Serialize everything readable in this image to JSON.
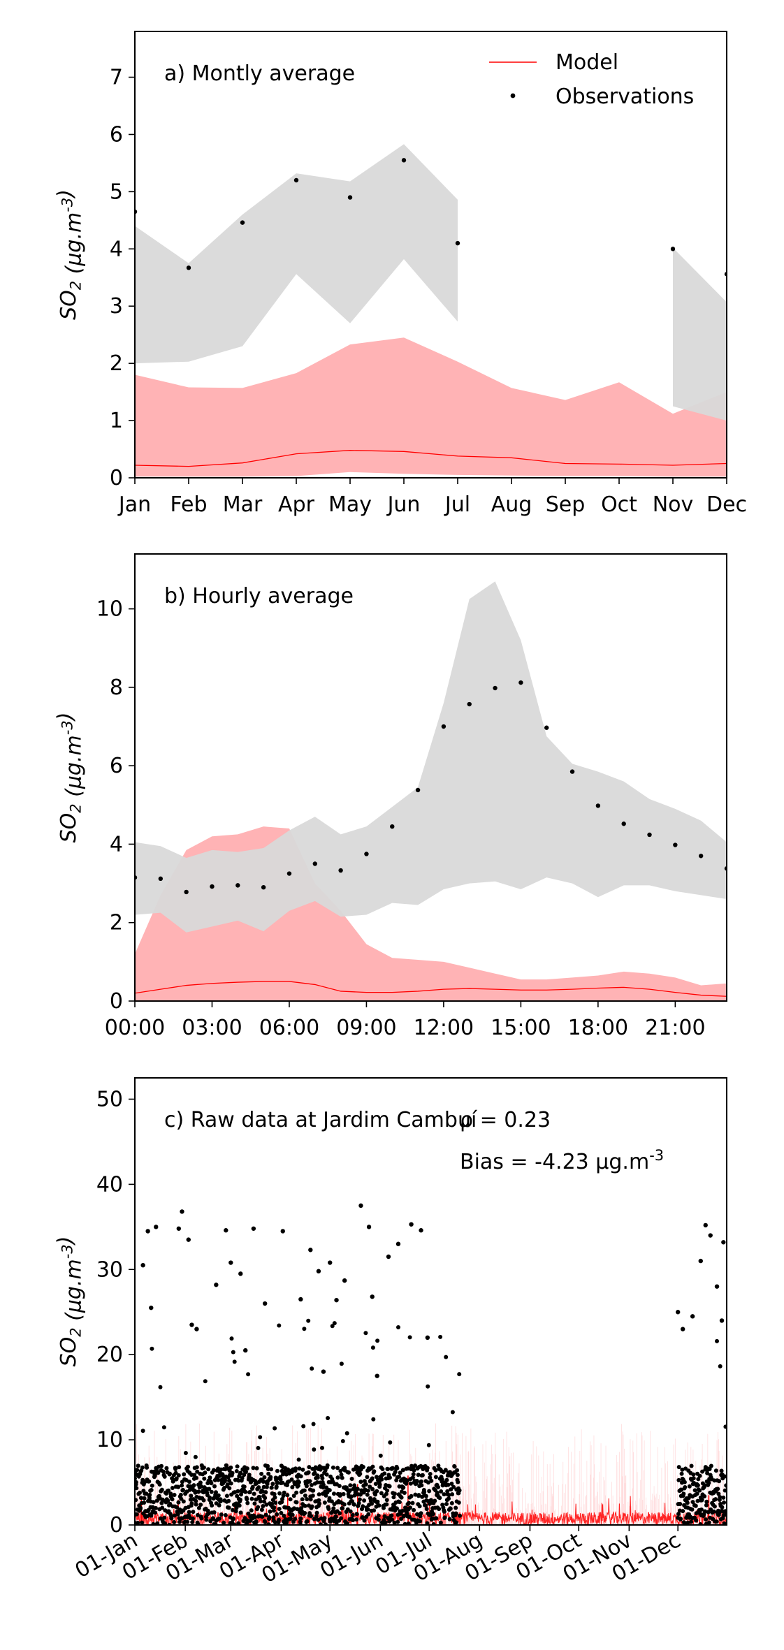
{
  "colors": {
    "model_line": "#ff0000",
    "model_band": "#ffb3b5",
    "obs_band": "#d9d9d9",
    "observations": "#000000"
  },
  "chart_data": [
    {
      "id": "a",
      "type": "line",
      "title": "a) Montly average",
      "ylabel": "SO$_2$ (μg.m$^{-3}$)",
      "ylim": [
        0,
        7.8
      ],
      "yticks": [
        0,
        1,
        2,
        3,
        4,
        5,
        6,
        7
      ],
      "xlim": [
        0,
        11
      ],
      "x_ticks": [
        "Jan",
        "Feb",
        "Mar",
        "Apr",
        "May",
        "Jun",
        "Jul",
        "Aug",
        "Sep",
        "Oct",
        "Nov",
        "Dec"
      ],
      "legend": {
        "position": "top-right",
        "items": [
          "Model",
          "Observations"
        ]
      },
      "series": [
        {
          "name": "Model",
          "kind": "line",
          "x": [
            0,
            1,
            2,
            3,
            4,
            5,
            6,
            7,
            8,
            9,
            10,
            11
          ],
          "values": [
            0.22,
            0.2,
            0.26,
            0.42,
            0.48,
            0.46,
            0.38,
            0.35,
            0.25,
            0.24,
            0.22,
            0.25
          ],
          "band_low": [
            0.02,
            0.02,
            0.02,
            0.03,
            0.1,
            0.07,
            0.05,
            0.04,
            0.03,
            0.03,
            0.02,
            0.02
          ],
          "band_high": [
            1.8,
            1.58,
            1.57,
            1.83,
            2.33,
            2.45,
            2.03,
            1.57,
            1.36,
            1.67,
            1.12,
            1.5
          ]
        },
        {
          "name": "Observations",
          "kind": "scatter",
          "x": [
            0,
            1,
            2,
            3,
            4,
            5,
            6,
            10,
            11
          ],
          "values": [
            4.65,
            3.67,
            4.46,
            5.2,
            4.9,
            5.55,
            4.1,
            4.0,
            3.56
          ],
          "band_segments": [
            {
              "x": [
                0,
                1,
                2,
                3,
                4,
                5,
                6
              ],
              "low": [
                2.0,
                2.03,
                2.3,
                3.56,
                2.7,
                3.82,
                2.73
              ],
              "high": [
                4.4,
                3.75,
                4.6,
                5.32,
                5.18,
                5.83,
                4.86
              ]
            },
            {
              "x": [
                10,
                11
              ],
              "low": [
                1.25,
                1.0
              ],
              "high": [
                4.02,
                3.07
              ]
            }
          ]
        }
      ]
    },
    {
      "id": "b",
      "type": "line",
      "title": "b) Hourly average",
      "ylabel": "SO$_2$ (μg.m$^{-3}$)",
      "ylim": [
        0,
        11.4
      ],
      "yticks": [
        0,
        2,
        4,
        6,
        8,
        10
      ],
      "xlim": [
        0,
        23
      ],
      "x_tick_positions": [
        0,
        3,
        6,
        9,
        12,
        15,
        18,
        21
      ],
      "x_ticks": [
        "00:00",
        "03:00",
        "06:00",
        "09:00",
        "12:00",
        "15:00",
        "18:00",
        "21:00"
      ],
      "series": [
        {
          "name": "Model",
          "kind": "line",
          "x": [
            0,
            1,
            2,
            3,
            4,
            5,
            6,
            7,
            8,
            9,
            10,
            11,
            12,
            13,
            14,
            15,
            16,
            17,
            18,
            19,
            20,
            21,
            22,
            23
          ],
          "values": [
            0.2,
            0.3,
            0.4,
            0.45,
            0.48,
            0.5,
            0.5,
            0.42,
            0.25,
            0.22,
            0.22,
            0.25,
            0.3,
            0.32,
            0.3,
            0.28,
            0.28,
            0.3,
            0.33,
            0.35,
            0.3,
            0.22,
            0.15,
            0.12
          ],
          "band_low": [
            0,
            0,
            0,
            0,
            0,
            0,
            0,
            0,
            0,
            0,
            0,
            0,
            0,
            0,
            0,
            0,
            0,
            0,
            0,
            0,
            0,
            0,
            0,
            0
          ],
          "band_high": [
            1.2,
            2.7,
            3.85,
            4.2,
            4.25,
            4.45,
            4.4,
            3.0,
            2.3,
            1.45,
            1.1,
            1.05,
            1.0,
            0.85,
            0.7,
            0.55,
            0.55,
            0.6,
            0.65,
            0.75,
            0.7,
            0.6,
            0.4,
            0.45
          ]
        },
        {
          "name": "Observations",
          "kind": "scatter",
          "x": [
            0,
            1,
            2,
            3,
            4,
            5,
            6,
            7,
            8,
            9,
            10,
            11,
            12,
            13,
            14,
            15,
            16,
            17,
            18,
            19,
            20,
            21,
            22,
            23
          ],
          "values": [
            3.15,
            3.12,
            2.78,
            2.92,
            2.95,
            2.9,
            3.25,
            3.5,
            3.33,
            3.75,
            4.45,
            5.38,
            7.0,
            7.57,
            7.98,
            8.12,
            6.97,
            5.85,
            4.98,
            4.52,
            4.24,
            3.98,
            3.7,
            3.38
          ],
          "band_low": [
            2.2,
            2.25,
            1.75,
            1.9,
            2.05,
            1.78,
            2.3,
            2.55,
            2.15,
            2.2,
            2.5,
            2.45,
            2.85,
            3.0,
            3.05,
            2.85,
            3.15,
            3.0,
            2.65,
            2.95,
            2.95,
            2.8,
            2.7,
            2.6
          ],
          "band_high": [
            4.05,
            3.95,
            3.65,
            3.85,
            3.8,
            3.9,
            4.35,
            4.7,
            4.25,
            4.45,
            4.95,
            5.45,
            7.6,
            10.25,
            10.7,
            9.2,
            6.75,
            6.05,
            5.85,
            5.6,
            5.15,
            4.9,
            4.6,
            4.05
          ]
        }
      ]
    },
    {
      "id": "c",
      "type": "scatter",
      "title": "c) Raw data at Jardim Cambuí",
      "annotations": [
        "ρ = 0.23",
        "Bias = -4.23 μg.m$^{-3}$"
      ],
      "ylabel": "SO$_2$ (μg.m$^{-3}$)",
      "ylim": [
        0,
        52.5
      ],
      "yticks": [
        0,
        10,
        20,
        30,
        40,
        50
      ],
      "xlim": [
        "2019-01-01",
        "2019-12-31"
      ],
      "x_tick_dates": [
        "2019-01-01",
        "2019-02-01",
        "2019-03-01",
        "2019-04-01",
        "2019-05-01",
        "2019-06-01",
        "2019-07-01",
        "2019-08-01",
        "2019-09-01",
        "2019-10-01",
        "2019-11-01",
        "2019-12-01"
      ],
      "x_ticks": [
        "01-Jan",
        "01-Feb",
        "01-Mar",
        "01-Apr",
        "01-May",
        "01-Jun",
        "01-Jul",
        "01-Aug",
        "01-Sep",
        "01-Oct",
        "01-Nov",
        "01-Dec"
      ],
      "observation_periods": [
        [
          "2019-01-01",
          "2019-07-20"
        ],
        [
          "2019-12-01",
          "2019-12-31"
        ]
      ],
      "series": [
        {
          "name": "Observations",
          "kind": "scatter",
          "typical_range": [
            0,
            7
          ],
          "peaks": [
            {
              "date": "2019-01-06",
              "value": 30.5
            },
            {
              "date": "2019-01-09",
              "value": 34.5
            },
            {
              "date": "2019-01-11",
              "value": 25.5
            },
            {
              "date": "2019-01-14",
              "value": 35.0
            },
            {
              "date": "2019-01-28",
              "value": 34.8
            },
            {
              "date": "2019-01-30",
              "value": 36.8
            },
            {
              "date": "2019-02-03",
              "value": 33.5
            },
            {
              "date": "2019-02-05",
              "value": 23.5
            },
            {
              "date": "2019-02-08",
              "value": 23.0
            },
            {
              "date": "2019-02-20",
              "value": 28.2
            },
            {
              "date": "2019-02-26",
              "value": 34.6
            },
            {
              "date": "2019-03-01",
              "value": 30.8
            },
            {
              "date": "2019-03-07",
              "value": 29.5
            },
            {
              "date": "2019-03-15",
              "value": 34.8
            },
            {
              "date": "2019-03-22",
              "value": 26.0
            },
            {
              "date": "2019-04-02",
              "value": 34.5
            },
            {
              "date": "2019-04-13",
              "value": 26.5
            },
            {
              "date": "2019-04-19",
              "value": 32.3
            },
            {
              "date": "2019-04-24",
              "value": 29.8
            },
            {
              "date": "2019-05-01",
              "value": 30.8
            },
            {
              "date": "2019-05-05",
              "value": 26.4
            },
            {
              "date": "2019-05-10",
              "value": 28.7
            },
            {
              "date": "2019-05-20",
              "value": 37.5
            },
            {
              "date": "2019-05-25",
              "value": 35.0
            },
            {
              "date": "2019-05-27",
              "value": 26.8
            },
            {
              "date": "2019-06-06",
              "value": 31.5
            },
            {
              "date": "2019-06-12",
              "value": 33.0
            },
            {
              "date": "2019-06-20",
              "value": 35.3
            },
            {
              "date": "2019-06-26",
              "value": 34.6
            },
            {
              "date": "2019-06-30",
              "value": 22.0
            },
            {
              "date": "2019-03-10",
              "value": 20.5
            },
            {
              "date": "2019-04-27",
              "value": 18.0
            },
            {
              "date": "2019-05-30",
              "value": 17.5
            },
            {
              "date": "2019-12-01",
              "value": 25.0
            },
            {
              "date": "2019-12-04",
              "value": 23.0
            },
            {
              "date": "2019-12-10",
              "value": 24.5
            },
            {
              "date": "2019-12-15",
              "value": 31.0
            },
            {
              "date": "2019-12-18",
              "value": 35.2
            },
            {
              "date": "2019-12-21",
              "value": 34.0
            },
            {
              "date": "2019-12-25",
              "value": 28.0
            },
            {
              "date": "2019-12-29",
              "value": 33.2
            },
            {
              "date": "2019-12-28",
              "value": 24.0
            }
          ]
        },
        {
          "name": "Model",
          "kind": "line",
          "typical_range": [
            0,
            1.5
          ],
          "peaks": [
            {
              "date": "2019-01-05",
              "value": 3.0
            },
            {
              "date": "2019-04-05",
              "value": 3.8
            },
            {
              "date": "2019-05-18",
              "value": 4.8
            },
            {
              "date": "2019-06-18",
              "value": 5.8
            },
            {
              "date": "2019-12-20",
              "value": 3.5
            }
          ]
        }
      ]
    }
  ]
}
